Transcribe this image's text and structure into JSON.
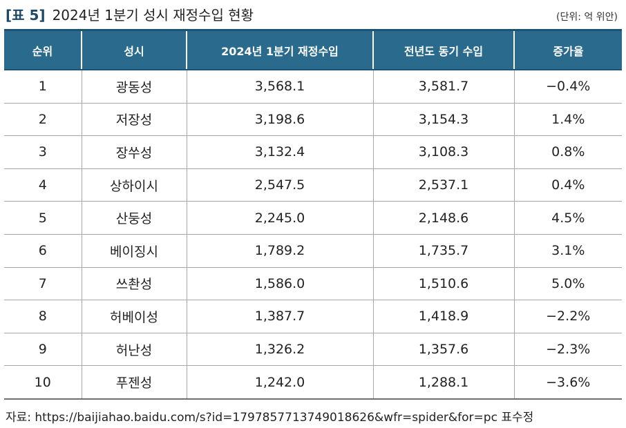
{
  "caption": {
    "tag": "[표 5]",
    "title": "2024년 1분기 성시 재정수입 현황"
  },
  "unit": "(단위: 억 위안)",
  "table": {
    "headers": [
      "순위",
      "성시",
      "2024년 1분기 재정수입",
      "전년도 동기 수입",
      "증가율"
    ],
    "rows": [
      [
        "1",
        "광동성",
        "3,568.1",
        "3,581.7",
        "−0.4%"
      ],
      [
        "2",
        "저장성",
        "3,198.6",
        "3,154.3",
        "1.4%"
      ],
      [
        "3",
        "장쑤성",
        "3,132.4",
        "3,108.3",
        "0.8%"
      ],
      [
        "4",
        "상하이시",
        "2,547.5",
        "2,537.1",
        "0.4%"
      ],
      [
        "5",
        "산둥성",
        "2,245.0",
        "2,148.6",
        "4.5%"
      ],
      [
        "6",
        "베이징시",
        "1,789.2",
        "1,735.7",
        "3.1%"
      ],
      [
        "7",
        "쓰촨성",
        "1,586.0",
        "1,510.6",
        "5.0%"
      ],
      [
        "8",
        "허베이성",
        "1,387.7",
        "1,418.9",
        "−2.2%"
      ],
      [
        "9",
        "허난성",
        "1,326.2",
        "1,357.6",
        "−2.3%"
      ],
      [
        "10",
        "푸젠성",
        "1,242.0",
        "1,288.1",
        "−3.6%"
      ]
    ]
  },
  "source": "자료: https://baijiahao.baidu.com/s?id=1797857713749018626&wfr=spider&for=pc 표수정"
}
